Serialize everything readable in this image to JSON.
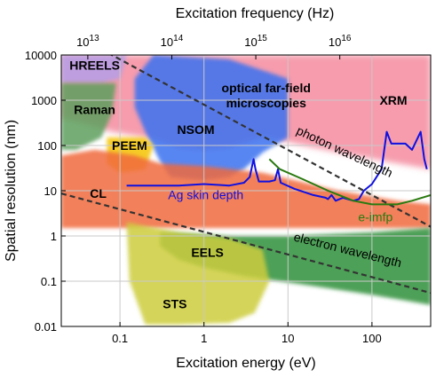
{
  "chart_data": {
    "type": "area",
    "xlabel": "Excitation energy (eV)",
    "ylabel": "Spatial resolution (nm)",
    "x2label": "Excitation frequency (Hz)",
    "xscale": "log",
    "yscale": "log",
    "xlim": [
      0.02,
      500
    ],
    "ylim": [
      0.01,
      10000
    ],
    "grid": true,
    "x_ticks": [
      {
        "value": 0.1,
        "label": "0.1"
      },
      {
        "value": 1,
        "label": "1"
      },
      {
        "value": 10,
        "label": "10"
      },
      {
        "value": 100,
        "label": "100"
      }
    ],
    "y_ticks": [
      {
        "value": 10000,
        "label": "10000"
      },
      {
        "value": 1000,
        "label": "1000"
      },
      {
        "value": 100,
        "label": "100"
      },
      {
        "value": 10,
        "label": "10"
      },
      {
        "value": 1,
        "label": "1"
      },
      {
        "value": 0.1,
        "label": "0.1"
      },
      {
        "value": 0.01,
        "label": "0.01"
      }
    ],
    "x2_ticks": [
      {
        "energy_ev": 0.0414,
        "base": "10",
        "exp": "13"
      },
      {
        "energy_ev": 0.414,
        "base": "10",
        "exp": "14"
      },
      {
        "energy_ev": 4.14,
        "base": "10",
        "exp": "15"
      },
      {
        "energy_ev": 41.4,
        "base": "10",
        "exp": "16"
      }
    ],
    "regions": [
      {
        "name": "optical far-field microscopies",
        "label": "optical far-field\nmicroscopies",
        "color": "#ef4a6a",
        "polygon": [
          [
            0.02,
            10000
          ],
          [
            500,
            10000
          ],
          [
            500,
            30
          ],
          [
            200,
            40
          ],
          [
            60,
            60
          ],
          [
            20,
            90
          ],
          [
            10,
            120
          ],
          [
            5,
            150
          ],
          [
            3,
            110
          ],
          [
            2,
            90
          ],
          [
            1,
            80
          ],
          [
            0.5,
            90
          ],
          [
            0.2,
            150
          ],
          [
            0.08,
            200
          ],
          [
            0.04,
            300
          ],
          [
            0.02,
            400
          ]
        ],
        "label_at": [
          5.5,
          1500
        ]
      },
      {
        "name": "XRM",
        "label": "XRM",
        "color": "#ef4a6a",
        "polygon": [],
        "label_at": [
          180,
          800
        ]
      },
      {
        "name": "HREELS",
        "label": "HREELS",
        "color": "#b49ee8",
        "polygon": [
          [
            0.02,
            10000
          ],
          [
            0.12,
            10000
          ],
          [
            0.1,
            3000
          ],
          [
            0.06,
            2400
          ],
          [
            0.02,
            2400
          ]
        ],
        "label_at": [
          0.05,
          4800
        ]
      },
      {
        "name": "Raman",
        "label": "Raman",
        "color": "#5d9f5d",
        "polygon": [
          [
            0.02,
            2400
          ],
          [
            0.09,
            2400
          ],
          [
            0.08,
            500
          ],
          [
            0.06,
            150
          ],
          [
            0.03,
            80
          ],
          [
            0.02,
            80
          ]
        ],
        "label_at": [
          0.05,
          500
        ]
      },
      {
        "name": "NSOM",
        "label": "NSOM",
        "color": "#3a72f0",
        "polygon": [
          [
            0.15,
            3000
          ],
          [
            0.25,
            10000
          ],
          [
            2,
            8000
          ],
          [
            10,
            3000
          ],
          [
            10,
            150
          ],
          [
            5,
            70
          ],
          [
            3,
            30
          ],
          [
            2,
            20
          ],
          [
            1,
            17
          ],
          [
            0.4,
            20
          ],
          [
            0.3,
            45
          ],
          [
            0.2,
            200
          ],
          [
            0.15,
            700
          ]
        ],
        "label_at": [
          0.8,
          180
        ]
      },
      {
        "name": "PEEM",
        "label": "PEEM",
        "color": "#f5c300",
        "polygon": [
          [
            0.07,
            150
          ],
          [
            0.2,
            150
          ],
          [
            0.25,
            100
          ],
          [
            0.2,
            30
          ],
          [
            0.1,
            25
          ],
          [
            0.07,
            40
          ]
        ],
        "label_at": [
          0.13,
          80
        ]
      },
      {
        "name": "CL",
        "label": "CL",
        "color": "#f06a3c",
        "polygon": [
          [
            0.02,
            60
          ],
          [
            0.05,
            80
          ],
          [
            0.15,
            60
          ],
          [
            0.3,
            40
          ],
          [
            1,
            35
          ],
          [
            5,
            25
          ],
          [
            40,
            10
          ],
          [
            200,
            6
          ],
          [
            500,
            5
          ],
          [
            500,
            1.5
          ],
          [
            0.02,
            1.5
          ]
        ],
        "label_at": [
          0.055,
          7
        ]
      },
      {
        "name": "EELS",
        "label": "EELS",
        "color": "#2f8f3a",
        "polygon": [
          [
            0.3,
            1.2
          ],
          [
            2,
            1
          ],
          [
            10,
            1
          ],
          [
            100,
            1.2
          ],
          [
            500,
            1.5
          ],
          [
            500,
            0.03
          ],
          [
            100,
            0.05
          ],
          [
            30,
            0.07
          ],
          [
            8,
            0.1
          ],
          [
            3,
            0.13
          ],
          [
            1,
            0.2
          ],
          [
            0.5,
            0.3
          ],
          [
            0.3,
            0.6
          ]
        ],
        "label_at": [
          1.1,
          0.35
        ]
      },
      {
        "name": "STS",
        "label": "STS",
        "color": "#cccc3c",
        "polygon": [
          [
            0.12,
            2
          ],
          [
            0.5,
            1.2
          ],
          [
            2,
            0.9
          ],
          [
            5,
            0.5
          ],
          [
            6,
            0.1
          ],
          [
            4,
            0.02
          ],
          [
            2,
            0.012
          ],
          [
            0.5,
            0.011
          ],
          [
            0.2,
            0.011
          ],
          [
            0.13,
            0.1
          ]
        ],
        "label_at": [
          0.45,
          0.025
        ]
      }
    ],
    "series": [
      {
        "name": "Ag skin depth",
        "label": "Ag skin depth",
        "color": "#1010e0",
        "label_at": [
          1.05,
          6.5
        ],
        "points": [
          [
            0.12,
            13
          ],
          [
            0.5,
            13
          ],
          [
            1,
            14
          ],
          [
            2,
            13
          ],
          [
            3,
            15
          ],
          [
            3.5,
            20
          ],
          [
            3.9,
            50
          ],
          [
            4.1,
            30
          ],
          [
            4.5,
            16
          ],
          [
            6,
            16
          ],
          [
            7,
            17
          ],
          [
            7.6,
            30
          ],
          [
            8.2,
            15
          ],
          [
            12,
            11
          ],
          [
            20,
            8
          ],
          [
            28,
            7
          ],
          [
            30,
            6.5
          ],
          [
            33,
            8
          ],
          [
            37,
            6
          ],
          [
            45,
            7
          ],
          [
            60,
            6
          ],
          [
            70,
            6.5
          ],
          [
            80,
            10
          ],
          [
            100,
            14
          ],
          [
            130,
            30
          ],
          [
            150,
            200
          ],
          [
            170,
            110
          ],
          [
            250,
            110
          ],
          [
            300,
            80
          ],
          [
            380,
            200
          ],
          [
            420,
            50
          ],
          [
            450,
            30
          ]
        ]
      },
      {
        "name": "e-imfp",
        "label": "e-imfp",
        "color": "#2a7a10",
        "label_at": [
          110,
          2.1
        ],
        "points": [
          [
            6,
            50
          ],
          [
            8,
            30
          ],
          [
            15,
            18
          ],
          [
            30,
            10
          ],
          [
            60,
            6
          ],
          [
            100,
            5
          ],
          [
            200,
            5
          ],
          [
            300,
            6
          ],
          [
            500,
            8
          ]
        ]
      }
    ],
    "dashed_lines": [
      {
        "name": "photon wavelength",
        "label": "photon wavelength",
        "color": "#333333",
        "points": [
          [
            0.02,
            40000
          ],
          [
            500,
            1.6
          ]
        ],
        "label_at": [
          45,
          60
        ],
        "angle": 25
      },
      {
        "name": "electron wavelength",
        "label": "electron wavelength",
        "color": "#333333",
        "points": [
          [
            0.02,
            8.7
          ],
          [
            500,
            0.055
          ]
        ],
        "label_at": [
          50,
          0.4
        ],
        "angle": 14
      }
    ]
  }
}
